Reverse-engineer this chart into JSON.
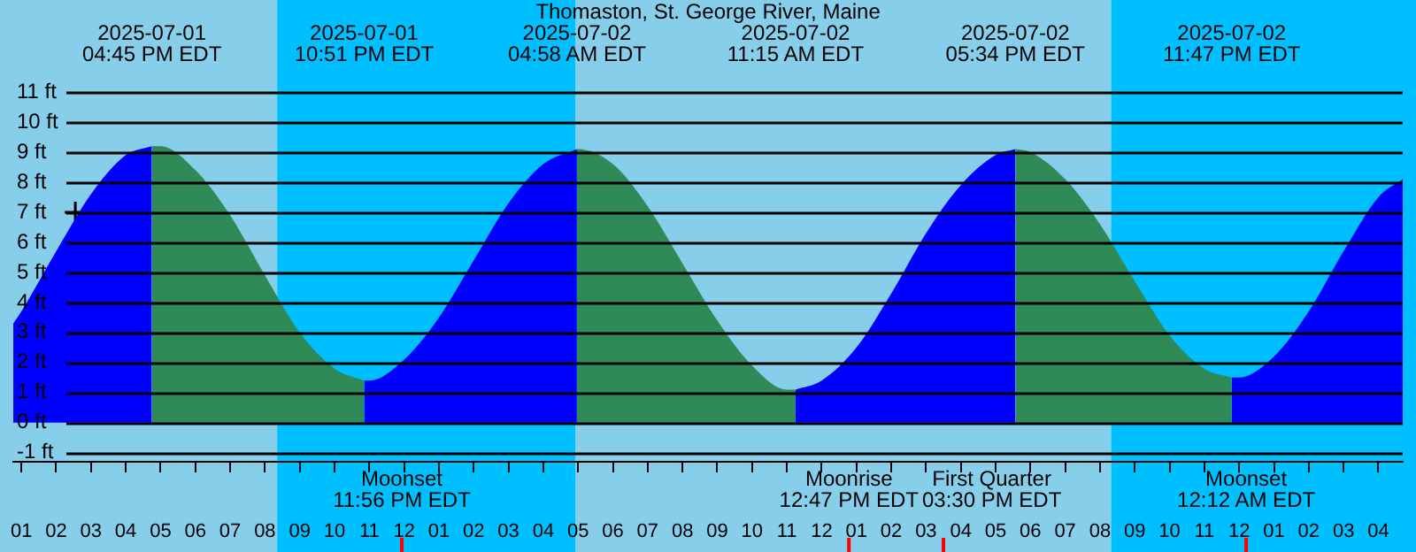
{
  "chart_data": {
    "type": "area",
    "title": "Thomaston, St. George River, Maine",
    "xlim": [
      "2025-07-01T12:46",
      "2025-07-03T04:42"
    ],
    "xticks": [
      {
        "value": "2025-07-01T13:00",
        "label": "01"
      },
      {
        "value": "2025-07-01T14:00",
        "label": "02"
      },
      {
        "value": "2025-07-01T15:00",
        "label": "03"
      },
      {
        "value": "2025-07-01T16:00",
        "label": "04"
      },
      {
        "value": "2025-07-01T17:00",
        "label": "05"
      },
      {
        "value": "2025-07-01T18:00",
        "label": "06"
      },
      {
        "value": "2025-07-01T19:00",
        "label": "07"
      },
      {
        "value": "2025-07-01T20:00",
        "label": "08"
      },
      {
        "value": "2025-07-01T21:00",
        "label": "09"
      },
      {
        "value": "2025-07-01T22:00",
        "label": "10"
      },
      {
        "value": "2025-07-01T23:00",
        "label": "11"
      },
      {
        "value": "2025-07-02T00:00",
        "label": "12"
      },
      {
        "value": "2025-07-02T01:00",
        "label": "01"
      },
      {
        "value": "2025-07-02T02:00",
        "label": "02"
      },
      {
        "value": "2025-07-02T03:00",
        "label": "03"
      },
      {
        "value": "2025-07-02T04:00",
        "label": "04"
      },
      {
        "value": "2025-07-02T05:00",
        "label": "05"
      },
      {
        "value": "2025-07-02T06:00",
        "label": "06"
      },
      {
        "value": "2025-07-02T07:00",
        "label": "07"
      },
      {
        "value": "2025-07-02T08:00",
        "label": "08"
      },
      {
        "value": "2025-07-02T09:00",
        "label": "09"
      },
      {
        "value": "2025-07-02T10:00",
        "label": "10"
      },
      {
        "value": "2025-07-02T11:00",
        "label": "11"
      },
      {
        "value": "2025-07-02T12:00",
        "label": "12"
      },
      {
        "value": "2025-07-02T13:00",
        "label": "01"
      },
      {
        "value": "2025-07-02T14:00",
        "label": "02"
      },
      {
        "value": "2025-07-02T15:00",
        "label": "03"
      },
      {
        "value": "2025-07-02T16:00",
        "label": "04"
      },
      {
        "value": "2025-07-02T17:00",
        "label": "05"
      },
      {
        "value": "2025-07-02T18:00",
        "label": "06"
      },
      {
        "value": "2025-07-02T19:00",
        "label": "07"
      },
      {
        "value": "2025-07-02T20:00",
        "label": "08"
      },
      {
        "value": "2025-07-02T21:00",
        "label": "09"
      },
      {
        "value": "2025-07-02T22:00",
        "label": "10"
      },
      {
        "value": "2025-07-02T23:00",
        "label": "11"
      },
      {
        "value": "2025-07-03T00:00",
        "label": "12"
      },
      {
        "value": "2025-07-03T01:00",
        "label": "01"
      },
      {
        "value": "2025-07-03T02:00",
        "label": "02"
      },
      {
        "value": "2025-07-03T03:00",
        "label": "03"
      },
      {
        "value": "2025-07-03T04:00",
        "label": "04"
      }
    ],
    "ylim": [
      -1.3,
      11
    ],
    "yticks": [
      {
        "value": -1,
        "label": "-1 ft"
      },
      {
        "value": 0,
        "label": "0 ft"
      },
      {
        "value": 1,
        "label": "1 ft"
      },
      {
        "value": 2,
        "label": "2 ft"
      },
      {
        "value": 3,
        "label": "3 ft"
      },
      {
        "value": 4,
        "label": "4 ft"
      },
      {
        "value": 5,
        "label": "5 ft"
      },
      {
        "value": 6,
        "label": "6 ft"
      },
      {
        "value": 7,
        "label": "7 ft"
      },
      {
        "value": 8,
        "label": "8 ft"
      },
      {
        "value": 9,
        "label": "9 ft"
      },
      {
        "value": 10,
        "label": "10 ft"
      },
      {
        "value": 11,
        "label": "11 ft"
      }
    ],
    "grid": "y",
    "bands": [
      {
        "axis": "x",
        "from": "2025-07-01T12:46",
        "to": "2025-07-01T20:21",
        "color": "#87ceeb"
      },
      {
        "axis": "x",
        "from": "2025-07-01T20:21",
        "to": "2025-07-02T04:56",
        "color": "#00bfff"
      },
      {
        "axis": "x",
        "from": "2025-07-02T04:56",
        "to": "2025-07-02T20:19",
        "color": "#87ceeb"
      },
      {
        "axis": "x",
        "from": "2025-07-02T20:19",
        "to": "2025-07-03T04:42",
        "color": "#00bfff"
      }
    ],
    "series": [
      {
        "color": "#0000ff",
        "x": [
          "2025-07-01T12:46",
          "2025-07-01T13:00",
          "2025-07-01T14:00",
          "2025-07-01T15:00",
          "2025-07-01T16:00",
          "2025-07-01T16:45"
        ],
        "values": [
          3.3,
          3.7,
          5.7,
          7.6,
          8.9,
          9.2
        ]
      },
      {
        "color": "#2e8b57",
        "x": [
          "2025-07-01T16:45",
          "2025-07-01T17:00",
          "2025-07-01T18:00",
          "2025-07-01T19:00",
          "2025-07-01T20:00",
          "2025-07-01T21:00",
          "2025-07-01T22:00",
          "2025-07-01T22:51"
        ],
        "values": [
          9.2,
          9.2,
          8.4,
          6.9,
          4.9,
          3.0,
          1.8,
          1.4
        ]
      },
      {
        "color": "#0000ff",
        "x": [
          "2025-07-01T22:51",
          "2025-07-01T23:00",
          "2025-07-02T00:00",
          "2025-07-02T01:00",
          "2025-07-02T02:00",
          "2025-07-02T03:00",
          "2025-07-02T04:00",
          "2025-07-02T04:58"
        ],
        "values": [
          1.4,
          1.4,
          2.1,
          3.5,
          5.4,
          7.3,
          8.6,
          9.1
        ]
      },
      {
        "color": "#2e8b57",
        "x": [
          "2025-07-02T04:58",
          "2025-07-02T05:00",
          "2025-07-02T06:00",
          "2025-07-02T07:00",
          "2025-07-02T08:00",
          "2025-07-02T09:00",
          "2025-07-02T10:00",
          "2025-07-02T11:00",
          "2025-07-02T11:15"
        ],
        "values": [
          9.1,
          9.1,
          8.6,
          7.2,
          5.3,
          3.4,
          1.9,
          1.1,
          1.1
        ]
      },
      {
        "color": "#0000ff",
        "x": [
          "2025-07-02T11:15",
          "2025-07-02T12:00",
          "2025-07-02T13:00",
          "2025-07-02T14:00",
          "2025-07-02T15:00",
          "2025-07-02T16:00",
          "2025-07-02T17:00",
          "2025-07-02T17:34"
        ],
        "values": [
          1.1,
          1.4,
          2.5,
          4.3,
          6.3,
          7.9,
          8.9,
          9.1
        ]
      },
      {
        "color": "#2e8b57",
        "x": [
          "2025-07-02T17:34",
          "2025-07-02T18:00",
          "2025-07-02T19:00",
          "2025-07-02T20:00",
          "2025-07-02T21:00",
          "2025-07-02T22:00",
          "2025-07-02T23:00",
          "2025-07-02T23:47"
        ],
        "values": [
          9.1,
          9.0,
          8.1,
          6.6,
          4.7,
          2.9,
          1.8,
          1.5
        ]
      },
      {
        "color": "#0000ff",
        "x": [
          "2025-07-02T23:47",
          "2025-07-03T00:00",
          "2025-07-03T01:00",
          "2025-07-03T02:00",
          "2025-07-03T03:00",
          "2025-07-03T04:00",
          "2025-07-03T04:42"
        ],
        "values": [
          1.5,
          1.5,
          2.2,
          3.7,
          5.7,
          7.5,
          8.1
        ]
      },
      {
        "type": "scatter",
        "color": "#000000",
        "marker": "cross",
        "x": [
          "2025-07-01T14:33"
        ],
        "values": [
          7.0
        ]
      }
    ],
    "annotations": [
      "2025-07-01\n04:45 PM EDT",
      "2025-07-01\n10:51 PM EDT",
      "2025-07-02\n04:58 AM EDT",
      "2025-07-02\n11:15 AM EDT",
      "2025-07-02\n05:34 PM EDT",
      "2025-07-02\n11:47 PM EDT"
    ],
    "ref_lines": [
      {
        "axis": "x",
        "value": "2025-07-01T23:56",
        "label": "Moonset\n11:56 PM EDT",
        "color": "#ff0000"
      },
      {
        "axis": "x",
        "value": "2025-07-02T12:47",
        "label": "Moonrise\n12:47 PM EDT",
        "color": "#ff0000"
      },
      {
        "axis": "x",
        "value": "2025-07-02T15:30",
        "label": "First Quarter\n03:30 PM EDT",
        "color": "#ff0000"
      },
      {
        "axis": "x",
        "value": "2025-07-03T00:12",
        "label": "Moonset\n12:12 AM EDT",
        "color": "#ff0000"
      }
    ]
  }
}
